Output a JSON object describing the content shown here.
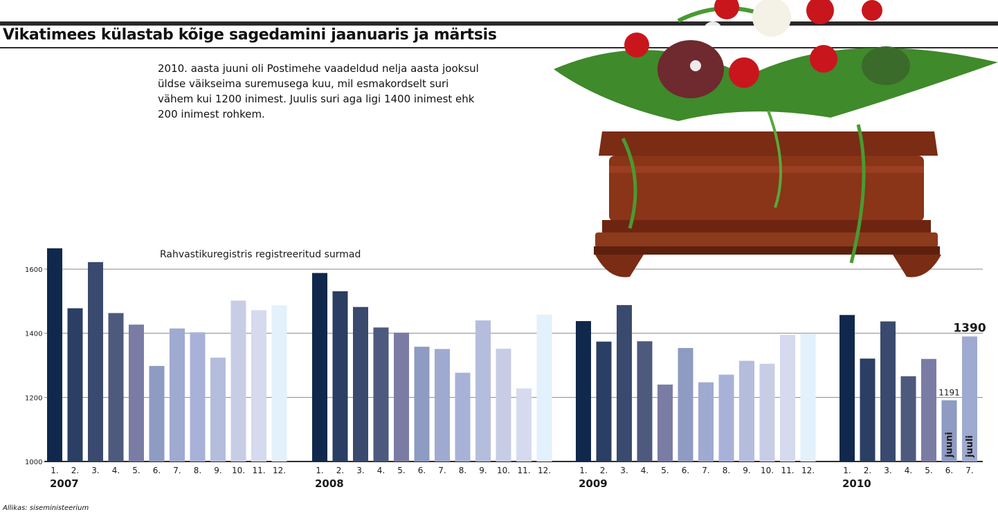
{
  "title": "Vikatimees külastab kõige sagedamini jaanuaris ja märtsis",
  "intro": "2010. aasta juuni oli Postimehe vaadeldud nelja aasta jooksul üldse väikseima suremusega kuu, mil esmakordselt suri vähem kui 1200 inimest. Juulis suri aga ligi 1400 inimest ehk 200 inimest rohkem.",
  "source": "Allikas: siseministeerium",
  "chart_data": {
    "type": "bar",
    "subtitle": "Rahvastikuregistris registreeritud surmad",
    "ylim": [
      1000,
      1600
    ],
    "yticks": [
      1000,
      1200,
      1400,
      1600
    ],
    "grid": true,
    "groups": [
      {
        "year": "2007",
        "months": [
          "1.",
          "2.",
          "3.",
          "4.",
          "5.",
          "6.",
          "7.",
          "8.",
          "9.",
          "10.",
          "11.",
          "12."
        ],
        "values": [
          1665,
          1478,
          1622,
          1463,
          1427,
          1298,
          1415,
          1403,
          1324,
          1502,
          1472,
          1487
        ]
      },
      {
        "year": "2008",
        "months": [
          "1.",
          "2.",
          "3.",
          "4.",
          "5.",
          "6.",
          "7.",
          "8.",
          "9.",
          "10.",
          "11.",
          "12."
        ],
        "values": [
          1588,
          1531,
          1482,
          1418,
          1402,
          1358,
          1351,
          1277,
          1440,
          1352,
          1228,
          1458
        ]
      },
      {
        "year": "2009",
        "months": [
          "1.",
          "2.",
          "3.",
          "4.",
          "5.",
          "6.",
          "7.",
          "8.",
          "9.",
          "10.",
          "11.",
          "12."
        ],
        "values": [
          1438,
          1374,
          1488,
          1375,
          1240,
          1354,
          1247,
          1271,
          1314,
          1305,
          1395,
          1399
        ]
      },
      {
        "year": "2010",
        "months": [
          "1.",
          "2.",
          "3.",
          "4.",
          "5.",
          "6.",
          "7."
        ],
        "values": [
          1457,
          1321,
          1437,
          1266,
          1320,
          1191,
          1390
        ]
      }
    ],
    "annotations": [
      {
        "group": 3,
        "index": 5,
        "value_label": "1191",
        "month_name": "juuni"
      },
      {
        "group": 3,
        "index": 6,
        "value_label": "1390",
        "month_name": "juuli"
      }
    ],
    "colors": [
      "#10284c",
      "#2b3e63",
      "#3a4a6e",
      "#4d5a7e",
      "#7b7ca4",
      "#8e9bc2",
      "#9faad0",
      "#a8b2d8",
      "#b5bddd",
      "#c8cde6",
      "#d6daee",
      "#e2f1fb"
    ]
  }
}
